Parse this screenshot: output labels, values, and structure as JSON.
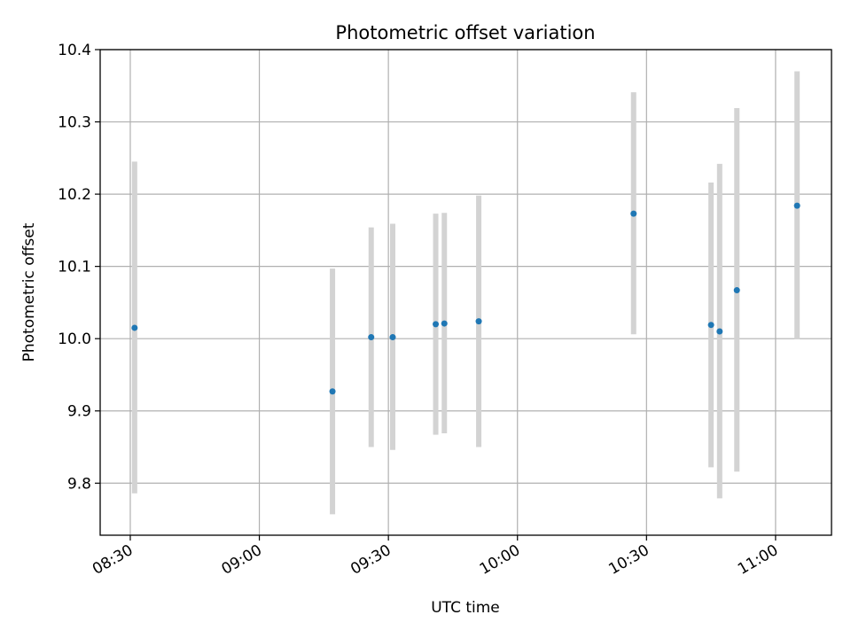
{
  "chart_data": {
    "type": "scatter",
    "title": "Photometric offset variation",
    "xlabel": "UTC time",
    "ylabel": "Photometric offset",
    "x_axis_kind": "time",
    "xlim": [
      "08:23",
      "11:13"
    ],
    "ylim": [
      9.728,
      10.4
    ],
    "xticks": [
      "08:30",
      "09:00",
      "09:30",
      "10:00",
      "10:30",
      "11:00"
    ],
    "yticks": [
      9.8,
      9.9,
      10.0,
      10.1,
      10.2,
      10.3,
      10.4
    ],
    "grid": true,
    "legend": "none",
    "point_color": "#1f77b4",
    "errorbar_color": "#d3d3d3",
    "points": [
      {
        "x": "08:31",
        "y": 10.015,
        "ylow": 9.786,
        "yhigh": 10.245
      },
      {
        "x": "09:17",
        "y": 9.927,
        "ylow": 9.757,
        "yhigh": 10.097
      },
      {
        "x": "09:26",
        "y": 10.002,
        "ylow": 9.85,
        "yhigh": 10.154
      },
      {
        "x": "09:31",
        "y": 10.002,
        "ylow": 9.846,
        "yhigh": 10.159
      },
      {
        "x": "09:41",
        "y": 10.02,
        "ylow": 9.867,
        "yhigh": 10.173
      },
      {
        "x": "09:43",
        "y": 10.021,
        "ylow": 9.869,
        "yhigh": 10.174
      },
      {
        "x": "09:51",
        "y": 10.024,
        "ylow": 9.85,
        "yhigh": 10.198
      },
      {
        "x": "10:27",
        "y": 10.173,
        "ylow": 10.006,
        "yhigh": 10.341
      },
      {
        "x": "10:45",
        "y": 10.019,
        "ylow": 9.822,
        "yhigh": 10.216
      },
      {
        "x": "10:47",
        "y": 10.01,
        "ylow": 9.779,
        "yhigh": 10.242
      },
      {
        "x": "10:51",
        "y": 10.067,
        "ylow": 9.816,
        "yhigh": 10.319
      },
      {
        "x": "11:05",
        "y": 10.184,
        "ylow": 9.999,
        "yhigh": 10.37
      }
    ]
  }
}
